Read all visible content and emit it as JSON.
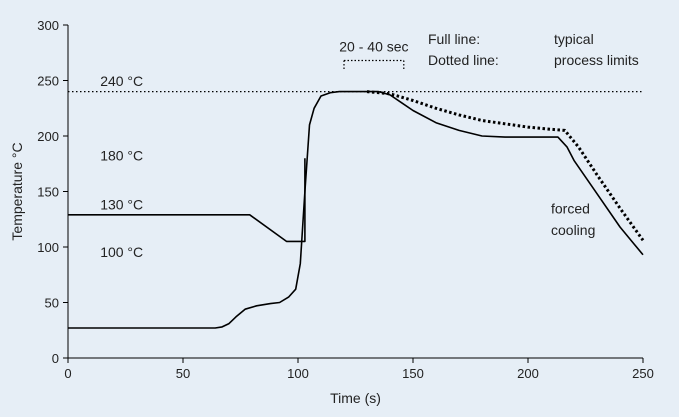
{
  "chart_data": {
    "type": "line",
    "title": "",
    "xlabel": "Time (s)",
    "ylabel": "Temperature °C",
    "xlim": [
      0,
      250
    ],
    "ylim": [
      0,
      300
    ],
    "x_ticks": [
      0,
      50,
      100,
      150,
      200,
      250
    ],
    "y_ticks": [
      0,
      50,
      100,
      150,
      200,
      250,
      300
    ],
    "grid": false,
    "colors": {
      "background": "#e6eef6",
      "line": "#000000"
    },
    "series": [
      {
        "style": "solid",
        "x": [
          0,
          64,
          67,
          70,
          73,
          77,
          82,
          88,
          92,
          96,
          99,
          101,
          103,
          105,
          107,
          110,
          114,
          118,
          125,
          135,
          140,
          145,
          150,
          160,
          170,
          180,
          190,
          200,
          210,
          213,
          217,
          220,
          230,
          240,
          250
        ],
        "y": [
          27,
          27,
          28,
          31,
          37,
          44,
          47,
          49,
          50,
          55,
          62,
          85,
          150,
          210,
          225,
          236,
          239,
          240,
          240,
          240,
          237,
          230,
          223,
          212,
          205,
          200,
          199,
          199,
          199,
          199,
          190,
          178,
          148,
          118,
          93
        ]
      },
      {
        "style": "solid",
        "x": [
          0,
          79,
          95,
          103,
          103
        ],
        "y": [
          129,
          129,
          105,
          105,
          180
        ]
      },
      {
        "style": "dotted",
        "x": [
          130,
          140,
          150,
          160,
          170,
          180,
          190,
          200,
          210,
          216,
          222,
          230,
          240,
          250
        ],
        "y": [
          240,
          238,
          232,
          225,
          219,
          214,
          211,
          208,
          206,
          205,
          190,
          165,
          135,
          106
        ]
      }
    ],
    "reference_lines": [
      {
        "y": 240,
        "style": "dotted"
      }
    ],
    "window": {
      "x_start": 120,
      "x_end": 146,
      "y": 268,
      "label": "20 - 40 sec"
    },
    "annotations": {
      "temp_240": {
        "text": "240 °C",
        "x": 14,
        "y": 245
      },
      "temp_180": {
        "text": "180 °C",
        "x": 14,
        "y": 178
      },
      "temp_130": {
        "text": "130 °C",
        "x": 14,
        "y": 134
      },
      "temp_100": {
        "text": "100 °C",
        "x": 14,
        "y": 91
      },
      "forced": {
        "text": "forced",
        "x": 210,
        "y": 130
      },
      "cooling": {
        "text": "cooling",
        "x": 210,
        "y": 111
      }
    },
    "legend": {
      "placement": "top-right",
      "rows": [
        {
          "key": "Full line:",
          "value": "typical"
        },
        {
          "key": "Dotted line:",
          "value": "process limits"
        }
      ]
    }
  }
}
